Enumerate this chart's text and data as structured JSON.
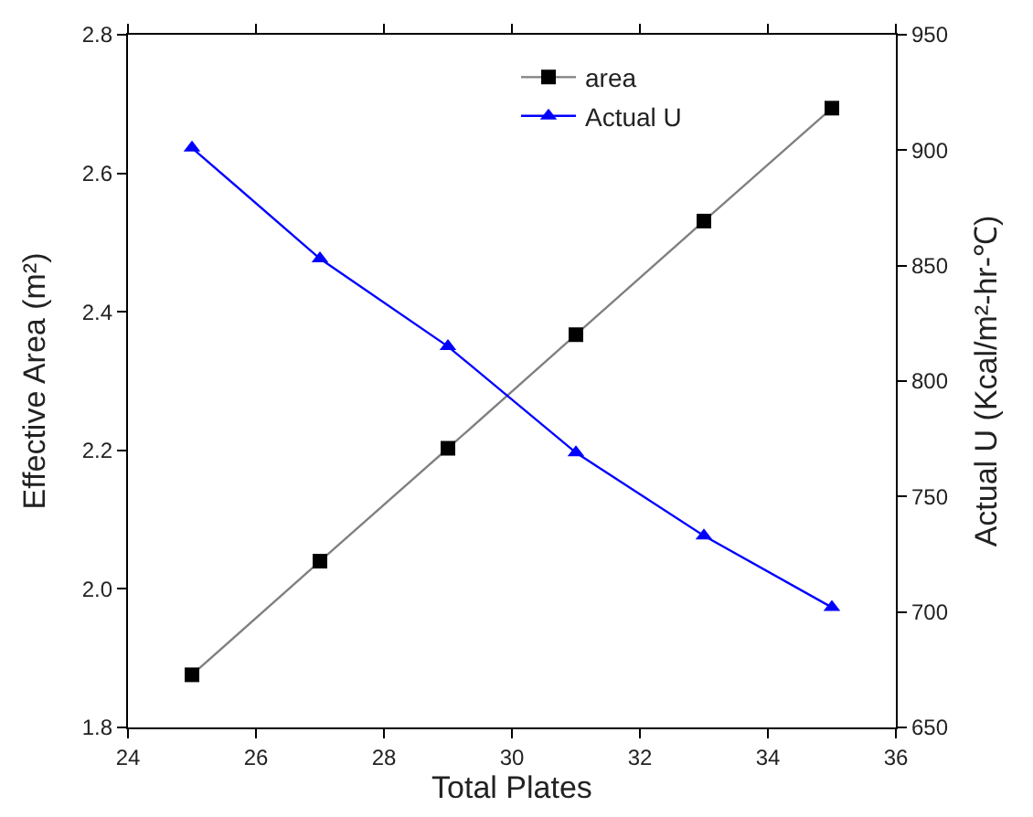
{
  "chart_data": {
    "type": "line",
    "x": [
      25,
      27,
      29,
      31,
      33,
      35
    ],
    "xlabel": "Total Plates",
    "ylabel": "Effective Area (m²)",
    "y2label": "Actual U (Kcal/m²-hr-℃)",
    "series": [
      {
        "name": "area",
        "color": "#000000",
        "marker": "square",
        "values": [
          1.876,
          2.04,
          2.203,
          2.367,
          2.531,
          2.694
        ]
      },
      {
        "name": "Actual U",
        "color": "#0000ff",
        "marker": "triangle",
        "axis": "y2",
        "values": [
          901,
          853,
          815,
          769,
          733,
          702
        ]
      }
    ],
    "xlim": [
      24,
      36
    ],
    "xticks": [
      24,
      26,
      28,
      30,
      32,
      34,
      36
    ],
    "ylim": [
      1.8,
      2.8
    ],
    "yticks": [
      1.8,
      {
        "value": 2,
        "label": "2.0"
      },
      2.2,
      2.4,
      2.6,
      2.8
    ],
    "y2lim": [
      650,
      950
    ],
    "y2ticks": [
      650,
      700,
      750,
      800,
      850,
      900,
      950
    ],
    "legend": "top"
  }
}
